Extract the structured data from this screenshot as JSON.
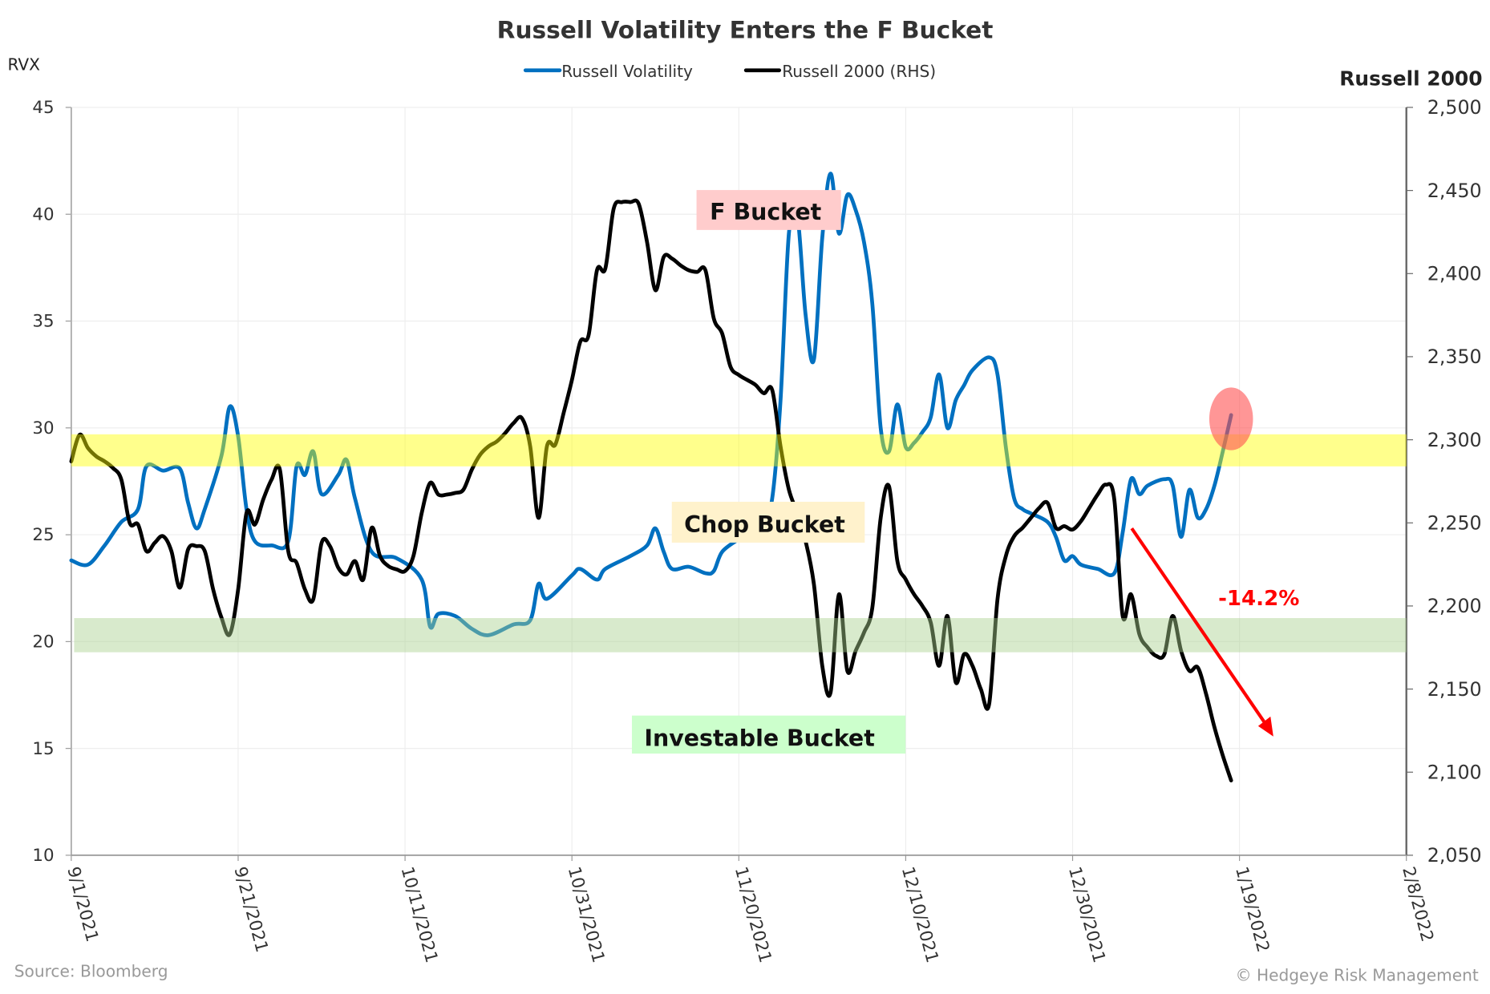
{
  "chart_data": {
    "type": "line",
    "title": "Russell Volatility Enters the F Bucket",
    "legend": {
      "position": "top-center"
    },
    "grid": true,
    "y_left": {
      "label": "RVX",
      "range": [
        10,
        45
      ],
      "ticks": [
        "10",
        "15",
        "20",
        "25",
        "30",
        "35",
        "40",
        "45"
      ],
      "tick_values": [
        10,
        15,
        20,
        25,
        30,
        35,
        40,
        45
      ]
    },
    "y_right": {
      "label": "Russell 2000",
      "range": [
        2050,
        2500
      ],
      "ticks": [
        "2,050",
        "2,100",
        "2,150",
        "2,200",
        "2,250",
        "2,300",
        "2,350",
        "2,400",
        "2,450",
        "2,500"
      ],
      "tick_values": [
        2050,
        2100,
        2150,
        2200,
        2250,
        2300,
        2350,
        2400,
        2450,
        2500
      ]
    },
    "x": {
      "range": [
        "2021-09-01",
        "2022-02-08"
      ],
      "ticks": [
        {
          "date": "2021-09-01",
          "label": "9/1/2021"
        },
        {
          "date": "2021-09-21",
          "label": "9/21/2021"
        },
        {
          "date": "2021-10-11",
          "label": "10/11/2021"
        },
        {
          "date": "2021-10-31",
          "label": "10/31/2021"
        },
        {
          "date": "2021-11-20",
          "label": "11/20/2021"
        },
        {
          "date": "2021-12-10",
          "label": "12/10/2021"
        },
        {
          "date": "2021-12-30",
          "label": "12/30/2021"
        },
        {
          "date": "2022-01-19",
          "label": "1/19/2022"
        },
        {
          "date": "2022-02-08",
          "label": "2/8/2022"
        }
      ]
    },
    "series": [
      {
        "name": "Russell Volatility",
        "axis": "left",
        "color": "#0070c0",
        "points": [
          [
            "2021-09-01",
            23.8
          ],
          [
            "2021-09-03",
            23.6
          ],
          [
            "2021-09-05",
            24.5
          ],
          [
            "2021-09-07",
            25.6
          ],
          [
            "2021-09-09",
            26.2
          ],
          [
            "2021-09-10",
            28.2
          ],
          [
            "2021-09-12",
            28.0
          ],
          [
            "2021-09-14",
            28.1
          ],
          [
            "2021-09-15",
            26.5
          ],
          [
            "2021-09-16",
            25.3
          ],
          [
            "2021-09-17",
            26.2
          ],
          [
            "2021-09-19",
            28.7
          ],
          [
            "2021-09-20",
            31.0
          ],
          [
            "2021-09-21",
            29.6
          ],
          [
            "2021-09-22",
            26.2
          ],
          [
            "2021-09-23",
            24.7
          ],
          [
            "2021-09-25",
            24.5
          ],
          [
            "2021-09-27",
            24.7
          ],
          [
            "2021-09-28",
            28.2
          ],
          [
            "2021-09-29",
            27.8
          ],
          [
            "2021-09-30",
            28.9
          ],
          [
            "2021-10-01",
            26.9
          ],
          [
            "2021-10-03",
            27.8
          ],
          [
            "2021-10-04",
            28.5
          ],
          [
            "2021-10-05",
            26.7
          ],
          [
            "2021-10-07",
            24.2
          ],
          [
            "2021-10-10",
            23.9
          ],
          [
            "2021-10-13",
            22.9
          ],
          [
            "2021-10-14",
            20.7
          ],
          [
            "2021-10-15",
            21.3
          ],
          [
            "2021-10-17",
            21.2
          ],
          [
            "2021-10-19",
            20.6
          ],
          [
            "2021-10-21",
            20.3
          ],
          [
            "2021-10-24",
            20.8
          ],
          [
            "2021-10-26",
            21.0
          ],
          [
            "2021-10-27",
            22.7
          ],
          [
            "2021-10-28",
            22.0
          ],
          [
            "2021-10-31",
            23.1
          ],
          [
            "2021-11-01",
            23.4
          ],
          [
            "2021-11-03",
            22.9
          ],
          [
            "2021-11-04",
            23.4
          ],
          [
            "2021-11-07",
            24.0
          ],
          [
            "2021-11-09",
            24.5
          ],
          [
            "2021-11-10",
            25.3
          ],
          [
            "2021-11-11",
            24.2
          ],
          [
            "2021-11-12",
            23.4
          ],
          [
            "2021-11-14",
            23.5
          ],
          [
            "2021-11-16",
            23.2
          ],
          [
            "2021-11-17",
            23.3
          ],
          [
            "2021-11-18",
            24.2
          ],
          [
            "2021-11-20",
            24.8
          ],
          [
            "2021-11-21",
            25.1
          ],
          [
            "2021-11-23",
            25.8
          ],
          [
            "2021-11-24",
            26.7
          ],
          [
            "2021-11-25",
            31.3
          ],
          [
            "2021-11-26",
            39.1
          ],
          [
            "2021-11-27",
            40.0
          ],
          [
            "2021-11-28",
            35.3
          ],
          [
            "2021-11-29",
            33.2
          ],
          [
            "2021-11-30",
            38.9
          ],
          [
            "2021-12-01",
            41.9
          ],
          [
            "2021-12-02",
            39.1
          ],
          [
            "2021-12-03",
            40.9
          ],
          [
            "2021-12-04",
            40.2
          ],
          [
            "2021-12-05",
            38.7
          ],
          [
            "2021-12-06",
            35.8
          ],
          [
            "2021-12-07",
            30.0
          ],
          [
            "2021-12-08",
            28.9
          ],
          [
            "2021-12-09",
            31.1
          ],
          [
            "2021-12-10",
            29.1
          ],
          [
            "2021-12-11",
            29.3
          ],
          [
            "2021-12-12",
            29.8
          ],
          [
            "2021-12-13",
            30.5
          ],
          [
            "2021-12-14",
            32.5
          ],
          [
            "2021-12-15",
            30.0
          ],
          [
            "2021-12-16",
            31.3
          ],
          [
            "2021-12-17",
            32.0
          ],
          [
            "2021-12-18",
            32.7
          ],
          [
            "2021-12-20",
            33.3
          ],
          [
            "2021-12-21",
            32.5
          ],
          [
            "2021-12-22",
            29.1
          ],
          [
            "2021-12-23",
            26.7
          ],
          [
            "2021-12-24",
            26.2
          ],
          [
            "2021-12-25",
            26.0
          ],
          [
            "2021-12-27",
            25.6
          ],
          [
            "2021-12-28",
            24.9
          ],
          [
            "2021-12-29",
            23.8
          ],
          [
            "2021-12-30",
            24.0
          ],
          [
            "2021-12-31",
            23.6
          ],
          [
            "2022-01-02",
            23.4
          ],
          [
            "2022-01-04",
            23.2
          ],
          [
            "2022-01-05",
            25.1
          ],
          [
            "2022-01-06",
            27.6
          ],
          [
            "2022-01-07",
            26.9
          ],
          [
            "2022-01-08",
            27.3
          ],
          [
            "2022-01-10",
            27.6
          ],
          [
            "2022-01-11",
            27.3
          ],
          [
            "2022-01-12",
            24.9
          ],
          [
            "2022-01-13",
            27.1
          ],
          [
            "2022-01-14",
            25.8
          ],
          [
            "2022-01-15",
            26.2
          ],
          [
            "2022-01-16",
            27.3
          ],
          [
            "2022-01-17",
            28.9
          ],
          [
            "2022-01-18",
            30.6
          ]
        ]
      },
      {
        "name": "Russell 2000 (RHS)",
        "axis": "right",
        "color": "#000000",
        "points": [
          [
            "2021-09-01",
            2287
          ],
          [
            "2021-09-02",
            2303
          ],
          [
            "2021-09-03",
            2295
          ],
          [
            "2021-09-04",
            2290
          ],
          [
            "2021-09-05",
            2287
          ],
          [
            "2021-09-06",
            2283
          ],
          [
            "2021-09-07",
            2276
          ],
          [
            "2021-09-08",
            2250
          ],
          [
            "2021-09-09",
            2249
          ],
          [
            "2021-09-10",
            2233
          ],
          [
            "2021-09-11",
            2238
          ],
          [
            "2021-09-12",
            2242
          ],
          [
            "2021-09-13",
            2233
          ],
          [
            "2021-09-14",
            2211
          ],
          [
            "2021-09-15",
            2234
          ],
          [
            "2021-09-16",
            2236
          ],
          [
            "2021-09-17",
            2233
          ],
          [
            "2021-09-18",
            2210
          ],
          [
            "2021-09-19",
            2193
          ],
          [
            "2021-09-20",
            2183
          ],
          [
            "2021-09-21",
            2210
          ],
          [
            "2021-09-22",
            2256
          ],
          [
            "2021-09-23",
            2249
          ],
          [
            "2021-09-24",
            2264
          ],
          [
            "2021-09-25",
            2276
          ],
          [
            "2021-09-26",
            2282
          ],
          [
            "2021-09-27",
            2233
          ],
          [
            "2021-09-28",
            2226
          ],
          [
            "2021-09-29",
            2210
          ],
          [
            "2021-09-30",
            2204
          ],
          [
            "2021-10-01",
            2238
          ],
          [
            "2021-10-02",
            2236
          ],
          [
            "2021-10-03",
            2223
          ],
          [
            "2021-10-04",
            2219
          ],
          [
            "2021-10-05",
            2227
          ],
          [
            "2021-10-06",
            2216
          ],
          [
            "2021-10-07",
            2247
          ],
          [
            "2021-10-08",
            2230
          ],
          [
            "2021-10-09",
            2224
          ],
          [
            "2021-10-10",
            2222
          ],
          [
            "2021-10-11",
            2221
          ],
          [
            "2021-10-12",
            2230
          ],
          [
            "2021-10-13",
            2256
          ],
          [
            "2021-10-14",
            2274
          ],
          [
            "2021-10-15",
            2267
          ],
          [
            "2021-10-16",
            2267
          ],
          [
            "2021-10-17",
            2268
          ],
          [
            "2021-10-18",
            2270
          ],
          [
            "2021-10-19",
            2282
          ],
          [
            "2021-10-20",
            2291
          ],
          [
            "2021-10-21",
            2296
          ],
          [
            "2021-10-22",
            2299
          ],
          [
            "2021-10-23",
            2304
          ],
          [
            "2021-10-24",
            2310
          ],
          [
            "2021-10-25",
            2313
          ],
          [
            "2021-10-26",
            2296
          ],
          [
            "2021-10-27",
            2253
          ],
          [
            "2021-10-28",
            2296
          ],
          [
            "2021-10-29",
            2297
          ],
          [
            "2021-10-30",
            2316
          ],
          [
            "2021-10-31",
            2336
          ],
          [
            "2021-11-01",
            2359
          ],
          [
            "2021-11-02",
            2363
          ],
          [
            "2021-11-03",
            2402
          ],
          [
            "2021-11-04",
            2403
          ],
          [
            "2021-11-05",
            2439
          ],
          [
            "2021-11-06",
            2443
          ],
          [
            "2021-11-07",
            2443
          ],
          [
            "2021-11-08",
            2442
          ],
          [
            "2021-11-09",
            2419
          ],
          [
            "2021-11-10",
            2390
          ],
          [
            "2021-11-11",
            2410
          ],
          [
            "2021-11-12",
            2409
          ],
          [
            "2021-11-13",
            2405
          ],
          [
            "2021-11-14",
            2402
          ],
          [
            "2021-11-15",
            2401
          ],
          [
            "2021-11-16",
            2402
          ],
          [
            "2021-11-17",
            2373
          ],
          [
            "2021-11-18",
            2364
          ],
          [
            "2021-11-19",
            2344
          ],
          [
            "2021-11-20",
            2339
          ],
          [
            "2021-11-21",
            2336
          ],
          [
            "2021-11-22",
            2333
          ],
          [
            "2021-11-23",
            2328
          ],
          [
            "2021-11-24",
            2330
          ],
          [
            "2021-11-25",
            2296
          ],
          [
            "2021-11-26",
            2270
          ],
          [
            "2021-11-27",
            2256
          ],
          [
            "2021-11-28",
            2239
          ],
          [
            "2021-11-29",
            2213
          ],
          [
            "2021-11-30",
            2164
          ],
          [
            "2021-12-01",
            2148
          ],
          [
            "2021-12-02",
            2207
          ],
          [
            "2021-12-03",
            2161
          ],
          [
            "2021-12-04",
            2173
          ],
          [
            "2021-12-05",
            2184
          ],
          [
            "2021-12-06",
            2199
          ],
          [
            "2021-12-07",
            2253
          ],
          [
            "2021-12-08",
            2272
          ],
          [
            "2021-12-09",
            2227
          ],
          [
            "2021-12-10",
            2216
          ],
          [
            "2021-12-11",
            2207
          ],
          [
            "2021-12-12",
            2200
          ],
          [
            "2021-12-13",
            2190
          ],
          [
            "2021-12-14",
            2164
          ],
          [
            "2021-12-15",
            2194
          ],
          [
            "2021-12-16",
            2154
          ],
          [
            "2021-12-17",
            2171
          ],
          [
            "2021-12-18",
            2164
          ],
          [
            "2021-12-19",
            2150
          ],
          [
            "2021-12-20",
            2141
          ],
          [
            "2021-12-21",
            2204
          ],
          [
            "2021-12-22",
            2230
          ],
          [
            "2021-12-23",
            2242
          ],
          [
            "2021-12-24",
            2247
          ],
          [
            "2021-12-25",
            2253
          ],
          [
            "2021-12-26",
            2259
          ],
          [
            "2021-12-27",
            2262
          ],
          [
            "2021-12-28",
            2247
          ],
          [
            "2021-12-29",
            2248
          ],
          [
            "2021-12-30",
            2246
          ],
          [
            "2021-12-31",
            2251
          ],
          [
            "2022-01-01",
            2259
          ],
          [
            "2022-01-02",
            2267
          ],
          [
            "2022-01-03",
            2273
          ],
          [
            "2022-01-04",
            2264
          ],
          [
            "2022-01-05",
            2194
          ],
          [
            "2022-01-06",
            2207
          ],
          [
            "2022-01-07",
            2183
          ],
          [
            "2022-01-08",
            2175
          ],
          [
            "2022-01-09",
            2170
          ],
          [
            "2022-01-10",
            2171
          ],
          [
            "2022-01-11",
            2194
          ],
          [
            "2022-01-12",
            2173
          ],
          [
            "2022-01-13",
            2161
          ],
          [
            "2022-01-14",
            2163
          ],
          [
            "2022-01-15",
            2147
          ],
          [
            "2022-01-16",
            2127
          ],
          [
            "2022-01-17",
            2110
          ],
          [
            "2022-01-18",
            2095
          ]
        ]
      }
    ],
    "bands": [
      {
        "axis": "left",
        "range": [
          28.2,
          29.7
        ],
        "color": "#ffff00"
      },
      {
        "axis": "left",
        "range": [
          19.5,
          21.1
        ],
        "color": "#a9d18e"
      }
    ],
    "highlight": {
      "date": "2022-01-18",
      "value": 30.6,
      "color": "#ff5050"
    },
    "annotations": {
      "buckets": [
        {
          "text": "F Bucket",
          "color": "#ffcccc"
        },
        {
          "text": "Chop Bucket",
          "color": "#fff2cc"
        },
        {
          "text": "Investable Bucket",
          "color": "#ccffcc"
        }
      ],
      "decline_label": "-14.2%",
      "decline_color": "#ff0000"
    }
  },
  "footer": {
    "source": "Source: Bloomberg",
    "credit": "© Hedgeye Risk Management"
  }
}
